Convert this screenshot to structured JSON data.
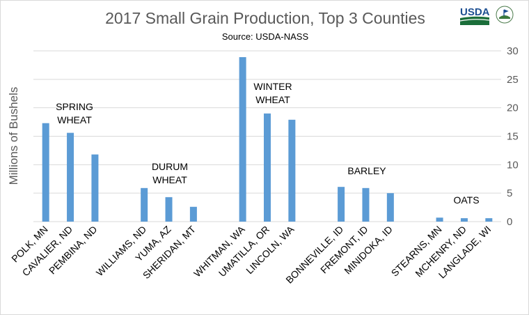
{
  "chart_data": {
    "type": "bar",
    "title": "2017 Small Grain Production, Top 3 Counties",
    "subtitle": "Source: USDA-NASS",
    "ylabel": "Millions of Bushels",
    "xlabel": "",
    "ylim": [
      0,
      30
    ],
    "yticks": [
      0,
      5,
      10,
      15,
      20,
      25,
      30
    ],
    "y_axis_side": "right",
    "grid": true,
    "bar_color": "#5B9BD5",
    "groups": [
      {
        "label_lines": [
          "SPRING",
          "WHEAT"
        ],
        "categories": [
          "POLK, MN",
          "CAVALIER, ND",
          "PEMBINA, ND"
        ],
        "values": [
          17.3,
          15.6,
          11.8
        ]
      },
      {
        "label_lines": [
          "DURUM",
          "WHEAT"
        ],
        "categories": [
          "WILLIAMS, ND",
          "YUMA, AZ",
          "SHERIDAN, MT"
        ],
        "values": [
          5.9,
          4.3,
          2.6
        ]
      },
      {
        "label_lines": [
          "WINTER",
          "WHEAT"
        ],
        "categories": [
          "WHITMAN, WA",
          "UMATILLA, OR",
          "LINCOLN, WA"
        ],
        "values": [
          28.9,
          19.0,
          17.9
        ]
      },
      {
        "label_lines": [
          "BARLEY"
        ],
        "categories": [
          "BONNEVILLE, ID",
          "FREMONT, ID",
          "MINIDOKA, ID"
        ],
        "values": [
          6.1,
          5.9,
          5.0
        ]
      },
      {
        "label_lines": [
          "OATS"
        ],
        "categories": [
          "STEARNS, MN",
          "MCHENRY, ND",
          "LANGLADE, WI"
        ],
        "values": [
          0.7,
          0.6,
          0.6
        ]
      }
    ]
  },
  "logos": {
    "usda": "USDA",
    "seal": "AGRICULTURE COUNTS"
  }
}
